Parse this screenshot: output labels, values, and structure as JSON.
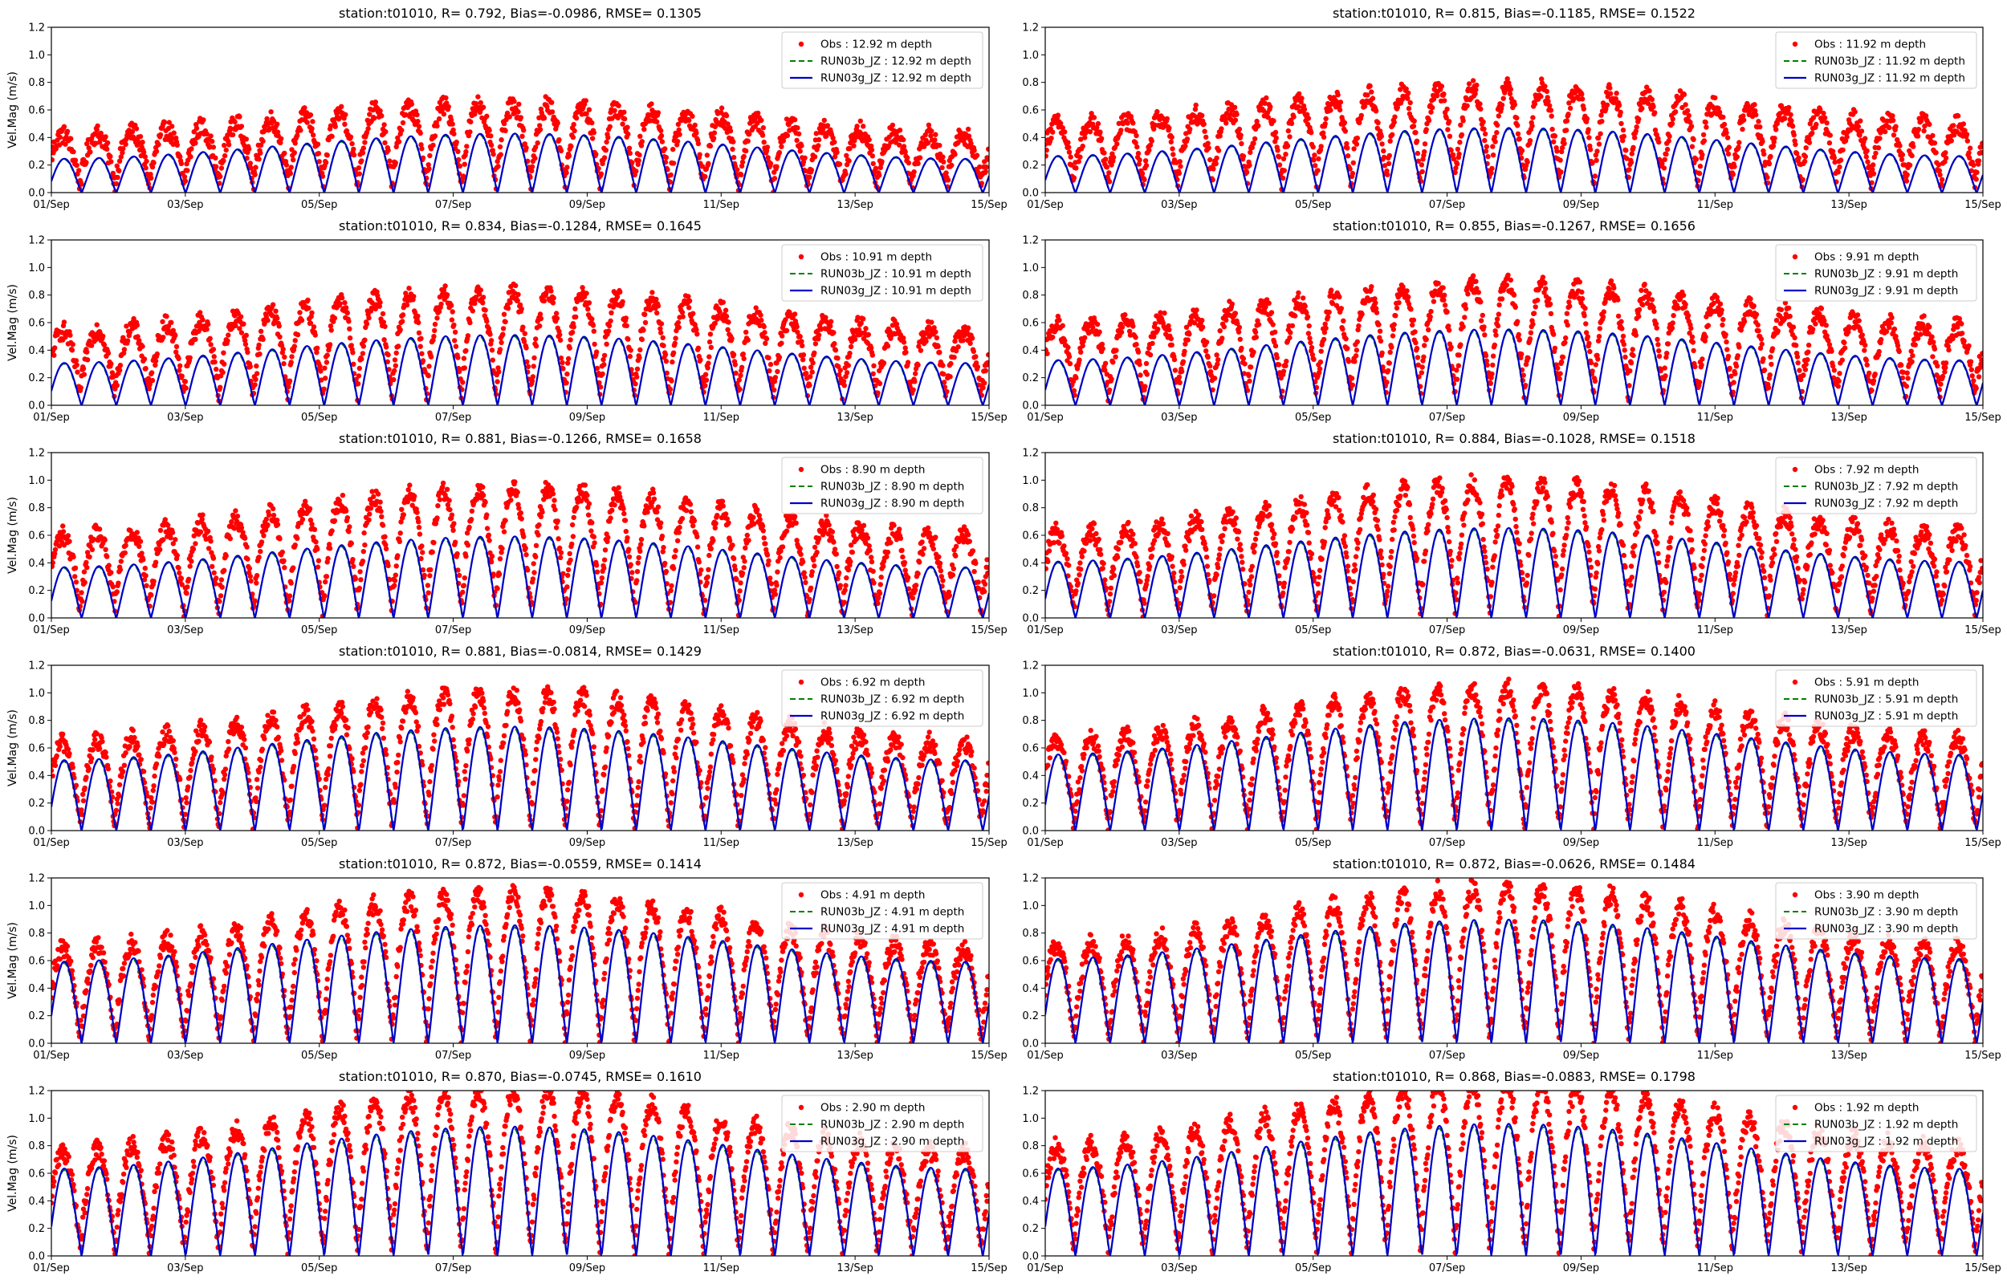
{
  "figure": {
    "colors": {
      "obs": "#ff0000",
      "run03b": "#008000",
      "run03g": "#0000cc",
      "axis": "#000000",
      "legend_border": "#cccccc"
    },
    "icons": {
      "obs_marker": "red-dot-icon",
      "run03b_line": "green-dashed-line-icon",
      "run03g_line": "blue-solid-line-icon"
    }
  },
  "chart_data": [
    {
      "type": "line",
      "depth": 12.92,
      "title": "station:t01010, R= 0.792, Bias=-0.0986, RMSE= 0.1305",
      "xlabel": "",
      "ylabel": "Vel.Mag (m/s)",
      "ylim": [
        0,
        1.2
      ],
      "xlim_days": [
        0,
        14
      ],
      "yticks": [
        "0.0",
        "0.2",
        "0.4",
        "0.6",
        "0.8",
        "1.0",
        "1.2"
      ],
      "xticks": [
        "01/Sep",
        "03/Sep",
        "05/Sep",
        "07/Sep",
        "09/Sep",
        "11/Sep",
        "13/Sep",
        "15/Sep"
      ],
      "legend_position": "top-right",
      "series": [
        {
          "name": "Obs : 12.92 m depth",
          "style": "markers"
        },
        {
          "name": "RUN03b_JZ : 12.92 m depth",
          "style": "dashed"
        },
        {
          "name": "RUN03g_JZ : 12.92 m depth",
          "style": "solid"
        }
      ],
      "model_amplitude": {
        "base": 0.24,
        "growth": 0.18
      },
      "obs_amplitude": {
        "base": 0.36,
        "growth": 0.22
      },
      "obs_offset": 0.06
    },
    {
      "type": "line",
      "depth": 11.92,
      "title": "station:t01010, R= 0.815, Bias=-0.1185, RMSE= 0.1522",
      "xlabel": "",
      "ylabel": "",
      "ylim": [
        0,
        1.2
      ],
      "xlim_days": [
        0,
        14
      ],
      "yticks": [
        "0.0",
        "0.2",
        "0.4",
        "0.6",
        "0.8",
        "1.0",
        "1.2"
      ],
      "xticks": [
        "01/Sep",
        "03/Sep",
        "05/Sep",
        "07/Sep",
        "09/Sep",
        "11/Sep",
        "13/Sep",
        "15/Sep"
      ],
      "legend_position": "top-right",
      "series": [
        {
          "name": "Obs : 11.92 m depth",
          "style": "markers"
        },
        {
          "name": "RUN03b_JZ : 11.92 m depth",
          "style": "dashed"
        },
        {
          "name": "RUN03g_JZ : 11.92 m depth",
          "style": "solid"
        }
      ],
      "model_amplitude": {
        "base": 0.26,
        "growth": 0.2
      },
      "obs_amplitude": {
        "base": 0.42,
        "growth": 0.26
      },
      "obs_offset": 0.08
    },
    {
      "type": "line",
      "depth": 10.91,
      "title": "station:t01010, R= 0.834, Bias=-0.1284, RMSE= 0.1645",
      "xlabel": "",
      "ylabel": "Vel.Mag (m/s)",
      "ylim": [
        0,
        1.2
      ],
      "xlim_days": [
        0,
        14
      ],
      "yticks": [
        "0.0",
        "0.2",
        "0.4",
        "0.6",
        "0.8",
        "1.0",
        "1.2"
      ],
      "xticks": [
        "01/Sep",
        "03/Sep",
        "05/Sep",
        "07/Sep",
        "09/Sep",
        "11/Sep",
        "13/Sep",
        "15/Sep"
      ],
      "legend_position": "top-right",
      "series": [
        {
          "name": "Obs : 10.91 m depth",
          "style": "markers"
        },
        {
          "name": "RUN03b_JZ : 10.91 m depth",
          "style": "dashed"
        },
        {
          "name": "RUN03g_JZ : 10.91 m depth",
          "style": "solid"
        }
      ],
      "model_amplitude": {
        "base": 0.3,
        "growth": 0.2
      },
      "obs_amplitude": {
        "base": 0.46,
        "growth": 0.28
      },
      "obs_offset": 0.08
    },
    {
      "type": "line",
      "depth": 9.91,
      "title": "station:t01010, R= 0.855, Bias=-0.1267, RMSE= 0.1656",
      "xlabel": "",
      "ylabel": "",
      "ylim": [
        0,
        1.2
      ],
      "xlim_days": [
        0,
        14
      ],
      "yticks": [
        "0.0",
        "0.2",
        "0.4",
        "0.6",
        "0.8",
        "1.0",
        "1.2"
      ],
      "xticks": [
        "01/Sep",
        "03/Sep",
        "05/Sep",
        "07/Sep",
        "09/Sep",
        "11/Sep",
        "13/Sep",
        "15/Sep"
      ],
      "legend_position": "top-right",
      "series": [
        {
          "name": "Obs : 9.91 m depth",
          "style": "markers"
        },
        {
          "name": "RUN03b_JZ : 9.91 m depth",
          "style": "dashed"
        },
        {
          "name": "RUN03g_JZ : 9.91 m depth",
          "style": "solid"
        }
      ],
      "model_amplitude": {
        "base": 0.32,
        "growth": 0.22
      },
      "obs_amplitude": {
        "base": 0.5,
        "growth": 0.3
      },
      "obs_offset": 0.08
    },
    {
      "type": "line",
      "depth": 8.9,
      "title": "station:t01010, R= 0.881, Bias=-0.1266, RMSE= 0.1658",
      "xlabel": "",
      "ylabel": "Vel.Mag (m/s)",
      "ylim": [
        0,
        1.2
      ],
      "xlim_days": [
        0,
        14
      ],
      "yticks": [
        "0.0",
        "0.2",
        "0.4",
        "0.6",
        "0.8",
        "1.0",
        "1.2"
      ],
      "xticks": [
        "01/Sep",
        "03/Sep",
        "05/Sep",
        "07/Sep",
        "09/Sep",
        "11/Sep",
        "13/Sep",
        "15/Sep"
      ],
      "legend_position": "top-right",
      "series": [
        {
          "name": "Obs : 8.90 m depth",
          "style": "markers"
        },
        {
          "name": "RUN03b_JZ : 8.90 m depth",
          "style": "dashed"
        },
        {
          "name": "RUN03g_JZ : 8.90 m depth",
          "style": "solid"
        }
      ],
      "model_amplitude": {
        "base": 0.36,
        "growth": 0.22
      },
      "obs_amplitude": {
        "base": 0.54,
        "growth": 0.34
      },
      "obs_offset": 0.06
    },
    {
      "type": "line",
      "depth": 7.92,
      "title": "station:t01010, R= 0.884, Bias=-0.1028, RMSE= 0.1518",
      "xlabel": "",
      "ylabel": "",
      "ylim": [
        0,
        1.2
      ],
      "xlim_days": [
        0,
        14
      ],
      "yticks": [
        "0.0",
        "0.2",
        "0.4",
        "0.6",
        "0.8",
        "1.0",
        "1.2"
      ],
      "xticks": [
        "01/Sep",
        "03/Sep",
        "05/Sep",
        "07/Sep",
        "09/Sep",
        "11/Sep",
        "13/Sep",
        "15/Sep"
      ],
      "legend_position": "top-right",
      "series": [
        {
          "name": "Obs : 7.92 m depth",
          "style": "markers"
        },
        {
          "name": "RUN03b_JZ : 7.92 m depth",
          "style": "dashed"
        },
        {
          "name": "RUN03g_JZ : 7.92 m depth",
          "style": "solid"
        }
      ],
      "model_amplitude": {
        "base": 0.4,
        "growth": 0.24
      },
      "obs_amplitude": {
        "base": 0.56,
        "growth": 0.36
      },
      "obs_offset": 0.06
    },
    {
      "type": "line",
      "depth": 6.92,
      "title": "station:t01010, R= 0.881, Bias=-0.0814, RMSE= 0.1429",
      "xlabel": "",
      "ylabel": "Vel.Mag (m/s)",
      "ylim": [
        0,
        1.2
      ],
      "xlim_days": [
        0,
        14
      ],
      "yticks": [
        "0.0",
        "0.2",
        "0.4",
        "0.6",
        "0.8",
        "1.0",
        "1.2"
      ],
      "xticks": [
        "01/Sep",
        "03/Sep",
        "05/Sep",
        "07/Sep",
        "09/Sep",
        "11/Sep",
        "13/Sep",
        "15/Sep"
      ],
      "legend_position": "top-right",
      "series": [
        {
          "name": "Obs : 6.92 m depth",
          "style": "markers"
        },
        {
          "name": "RUN03b_JZ : 6.92 m depth",
          "style": "dashed"
        },
        {
          "name": "RUN03g_JZ : 6.92 m depth",
          "style": "solid"
        }
      ],
      "model_amplitude": {
        "base": 0.5,
        "growth": 0.24
      },
      "obs_amplitude": {
        "base": 0.6,
        "growth": 0.36
      },
      "obs_offset": 0.04
    },
    {
      "type": "line",
      "depth": 5.91,
      "title": "station:t01010, R= 0.872, Bias=-0.0631, RMSE= 0.1400",
      "xlabel": "",
      "ylabel": "",
      "ylim": [
        0,
        1.2
      ],
      "xlim_days": [
        0,
        14
      ],
      "yticks": [
        "0.0",
        "0.2",
        "0.4",
        "0.6",
        "0.8",
        "1.0",
        "1.2"
      ],
      "xticks": [
        "01/Sep",
        "03/Sep",
        "05/Sep",
        "07/Sep",
        "09/Sep",
        "11/Sep",
        "13/Sep",
        "15/Sep"
      ],
      "legend_position": "top-right",
      "series": [
        {
          "name": "Obs : 5.91 m depth",
          "style": "markers"
        },
        {
          "name": "RUN03b_JZ : 5.91 m depth",
          "style": "dashed"
        },
        {
          "name": "RUN03g_JZ : 5.91 m depth",
          "style": "solid"
        }
      ],
      "model_amplitude": {
        "base": 0.54,
        "growth": 0.26
      },
      "obs_amplitude": {
        "base": 0.62,
        "growth": 0.38
      },
      "obs_offset": 0.04
    },
    {
      "type": "line",
      "depth": 4.91,
      "title": "station:t01010, R= 0.872, Bias=-0.0559, RMSE= 0.1414",
      "xlabel": "",
      "ylabel": "Vel.Mag (m/s)",
      "ylim": [
        0,
        1.2
      ],
      "xlim_days": [
        0,
        14
      ],
      "yticks": [
        "0.0",
        "0.2",
        "0.4",
        "0.6",
        "0.8",
        "1.0",
        "1.2"
      ],
      "xticks": [
        "01/Sep",
        "03/Sep",
        "05/Sep",
        "07/Sep",
        "09/Sep",
        "11/Sep",
        "13/Sep",
        "15/Sep"
      ],
      "legend_position": "top-right",
      "series": [
        {
          "name": "Obs : 4.91 m depth",
          "style": "markers"
        },
        {
          "name": "RUN03b_JZ : 4.91 m depth",
          "style": "dashed"
        },
        {
          "name": "RUN03g_JZ : 4.91 m depth",
          "style": "solid"
        }
      ],
      "model_amplitude": {
        "base": 0.58,
        "growth": 0.26
      },
      "obs_amplitude": {
        "base": 0.66,
        "growth": 0.4
      },
      "obs_offset": 0.03
    },
    {
      "type": "line",
      "depth": 3.9,
      "title": "station:t01010, R= 0.872, Bias=-0.0626, RMSE= 0.1484",
      "xlabel": "",
      "ylabel": "",
      "ylim": [
        0,
        1.2
      ],
      "xlim_days": [
        0,
        14
      ],
      "yticks": [
        "0.0",
        "0.2",
        "0.4",
        "0.6",
        "0.8",
        "1.0",
        "1.2"
      ],
      "xticks": [
        "01/Sep",
        "03/Sep",
        "05/Sep",
        "07/Sep",
        "09/Sep",
        "11/Sep",
        "13/Sep",
        "15/Sep"
      ],
      "legend_position": "top-right",
      "series": [
        {
          "name": "Obs : 3.90 m depth",
          "style": "markers"
        },
        {
          "name": "RUN03b_JZ : 3.90 m depth",
          "style": "dashed"
        },
        {
          "name": "RUN03g_JZ : 3.90 m depth",
          "style": "solid"
        }
      ],
      "model_amplitude": {
        "base": 0.6,
        "growth": 0.28
      },
      "obs_amplitude": {
        "base": 0.68,
        "growth": 0.42
      },
      "obs_offset": 0.03
    },
    {
      "type": "line",
      "depth": 2.9,
      "title": "station:t01010, R= 0.870, Bias=-0.0745, RMSE= 0.1610",
      "xlabel": "",
      "ylabel": "Vel.Mag (m/s)",
      "ylim": [
        0,
        1.2
      ],
      "xlim_days": [
        0,
        14
      ],
      "yticks": [
        "0.0",
        "0.2",
        "0.4",
        "0.6",
        "0.8",
        "1.0",
        "1.2"
      ],
      "xticks": [
        "01/Sep",
        "03/Sep",
        "05/Sep",
        "07/Sep",
        "09/Sep",
        "11/Sep",
        "13/Sep",
        "15/Sep"
      ],
      "legend_position": "top-right",
      "series": [
        {
          "name": "Obs : 2.90 m depth",
          "style": "markers"
        },
        {
          "name": "RUN03b_JZ : 2.90 m depth",
          "style": "dashed"
        },
        {
          "name": "RUN03g_JZ : 2.90 m depth",
          "style": "solid"
        }
      ],
      "model_amplitude": {
        "base": 0.62,
        "growth": 0.3
      },
      "obs_amplitude": {
        "base": 0.72,
        "growth": 0.44
      },
      "obs_offset": 0.04
    },
    {
      "type": "line",
      "depth": 1.92,
      "title": "station:t01010, R= 0.868, Bias=-0.0883, RMSE= 0.1798",
      "xlabel": "",
      "ylabel": "",
      "ylim": [
        0,
        1.2
      ],
      "xlim_days": [
        0,
        14
      ],
      "yticks": [
        "0.0",
        "0.2",
        "0.4",
        "0.6",
        "0.8",
        "1.0",
        "1.2"
      ],
      "xticks": [
        "01/Sep",
        "03/Sep",
        "05/Sep",
        "07/Sep",
        "09/Sep",
        "11/Sep",
        "13/Sep",
        "15/Sep"
      ],
      "legend_position": "top-right",
      "series": [
        {
          "name": "Obs : 1.92 m depth",
          "style": "markers"
        },
        {
          "name": "RUN03b_JZ : 1.92 m depth",
          "style": "dashed"
        },
        {
          "name": "RUN03g_JZ : 1.92 m depth",
          "style": "solid"
        }
      ],
      "model_amplitude": {
        "base": 0.62,
        "growth": 0.32
      },
      "obs_amplitude": {
        "base": 0.74,
        "growth": 0.46
      },
      "obs_offset": 0.05
    }
  ]
}
